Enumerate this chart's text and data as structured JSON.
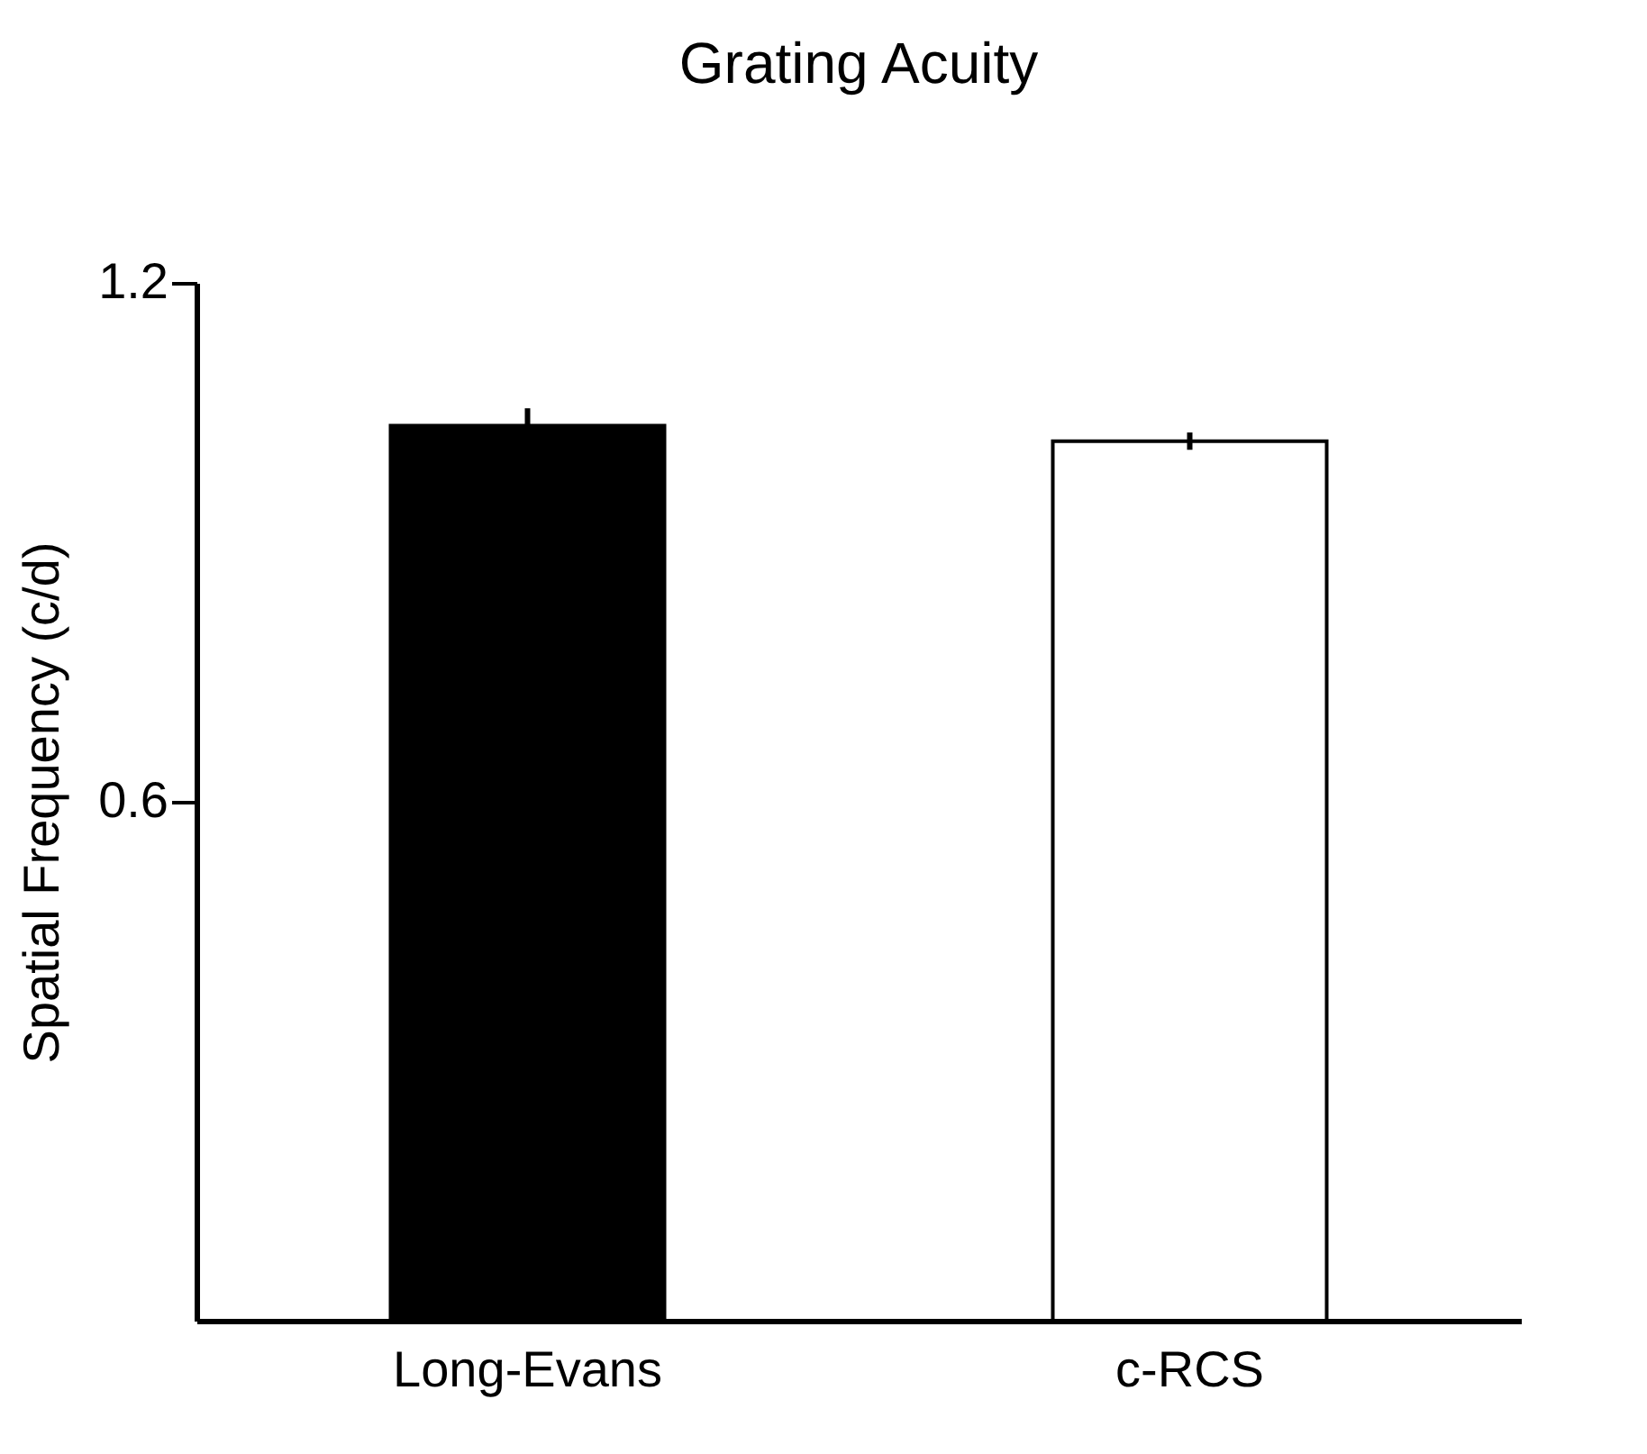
{
  "chart_data": {
    "type": "bar",
    "title": "Grating Acuity",
    "ylabel": "Spatial Frequency (c/d)",
    "categories": [
      "Long-Evans",
      "c-RCS"
    ],
    "values": [
      1.035,
      1.017
    ],
    "errors": [
      0.02,
      0.01
    ],
    "colors": [
      "#000000",
      "#ffffff"
    ],
    "ylim": [
      0,
      1.2
    ],
    "yticks": [
      0.6,
      1.2
    ],
    "grid": false
  }
}
